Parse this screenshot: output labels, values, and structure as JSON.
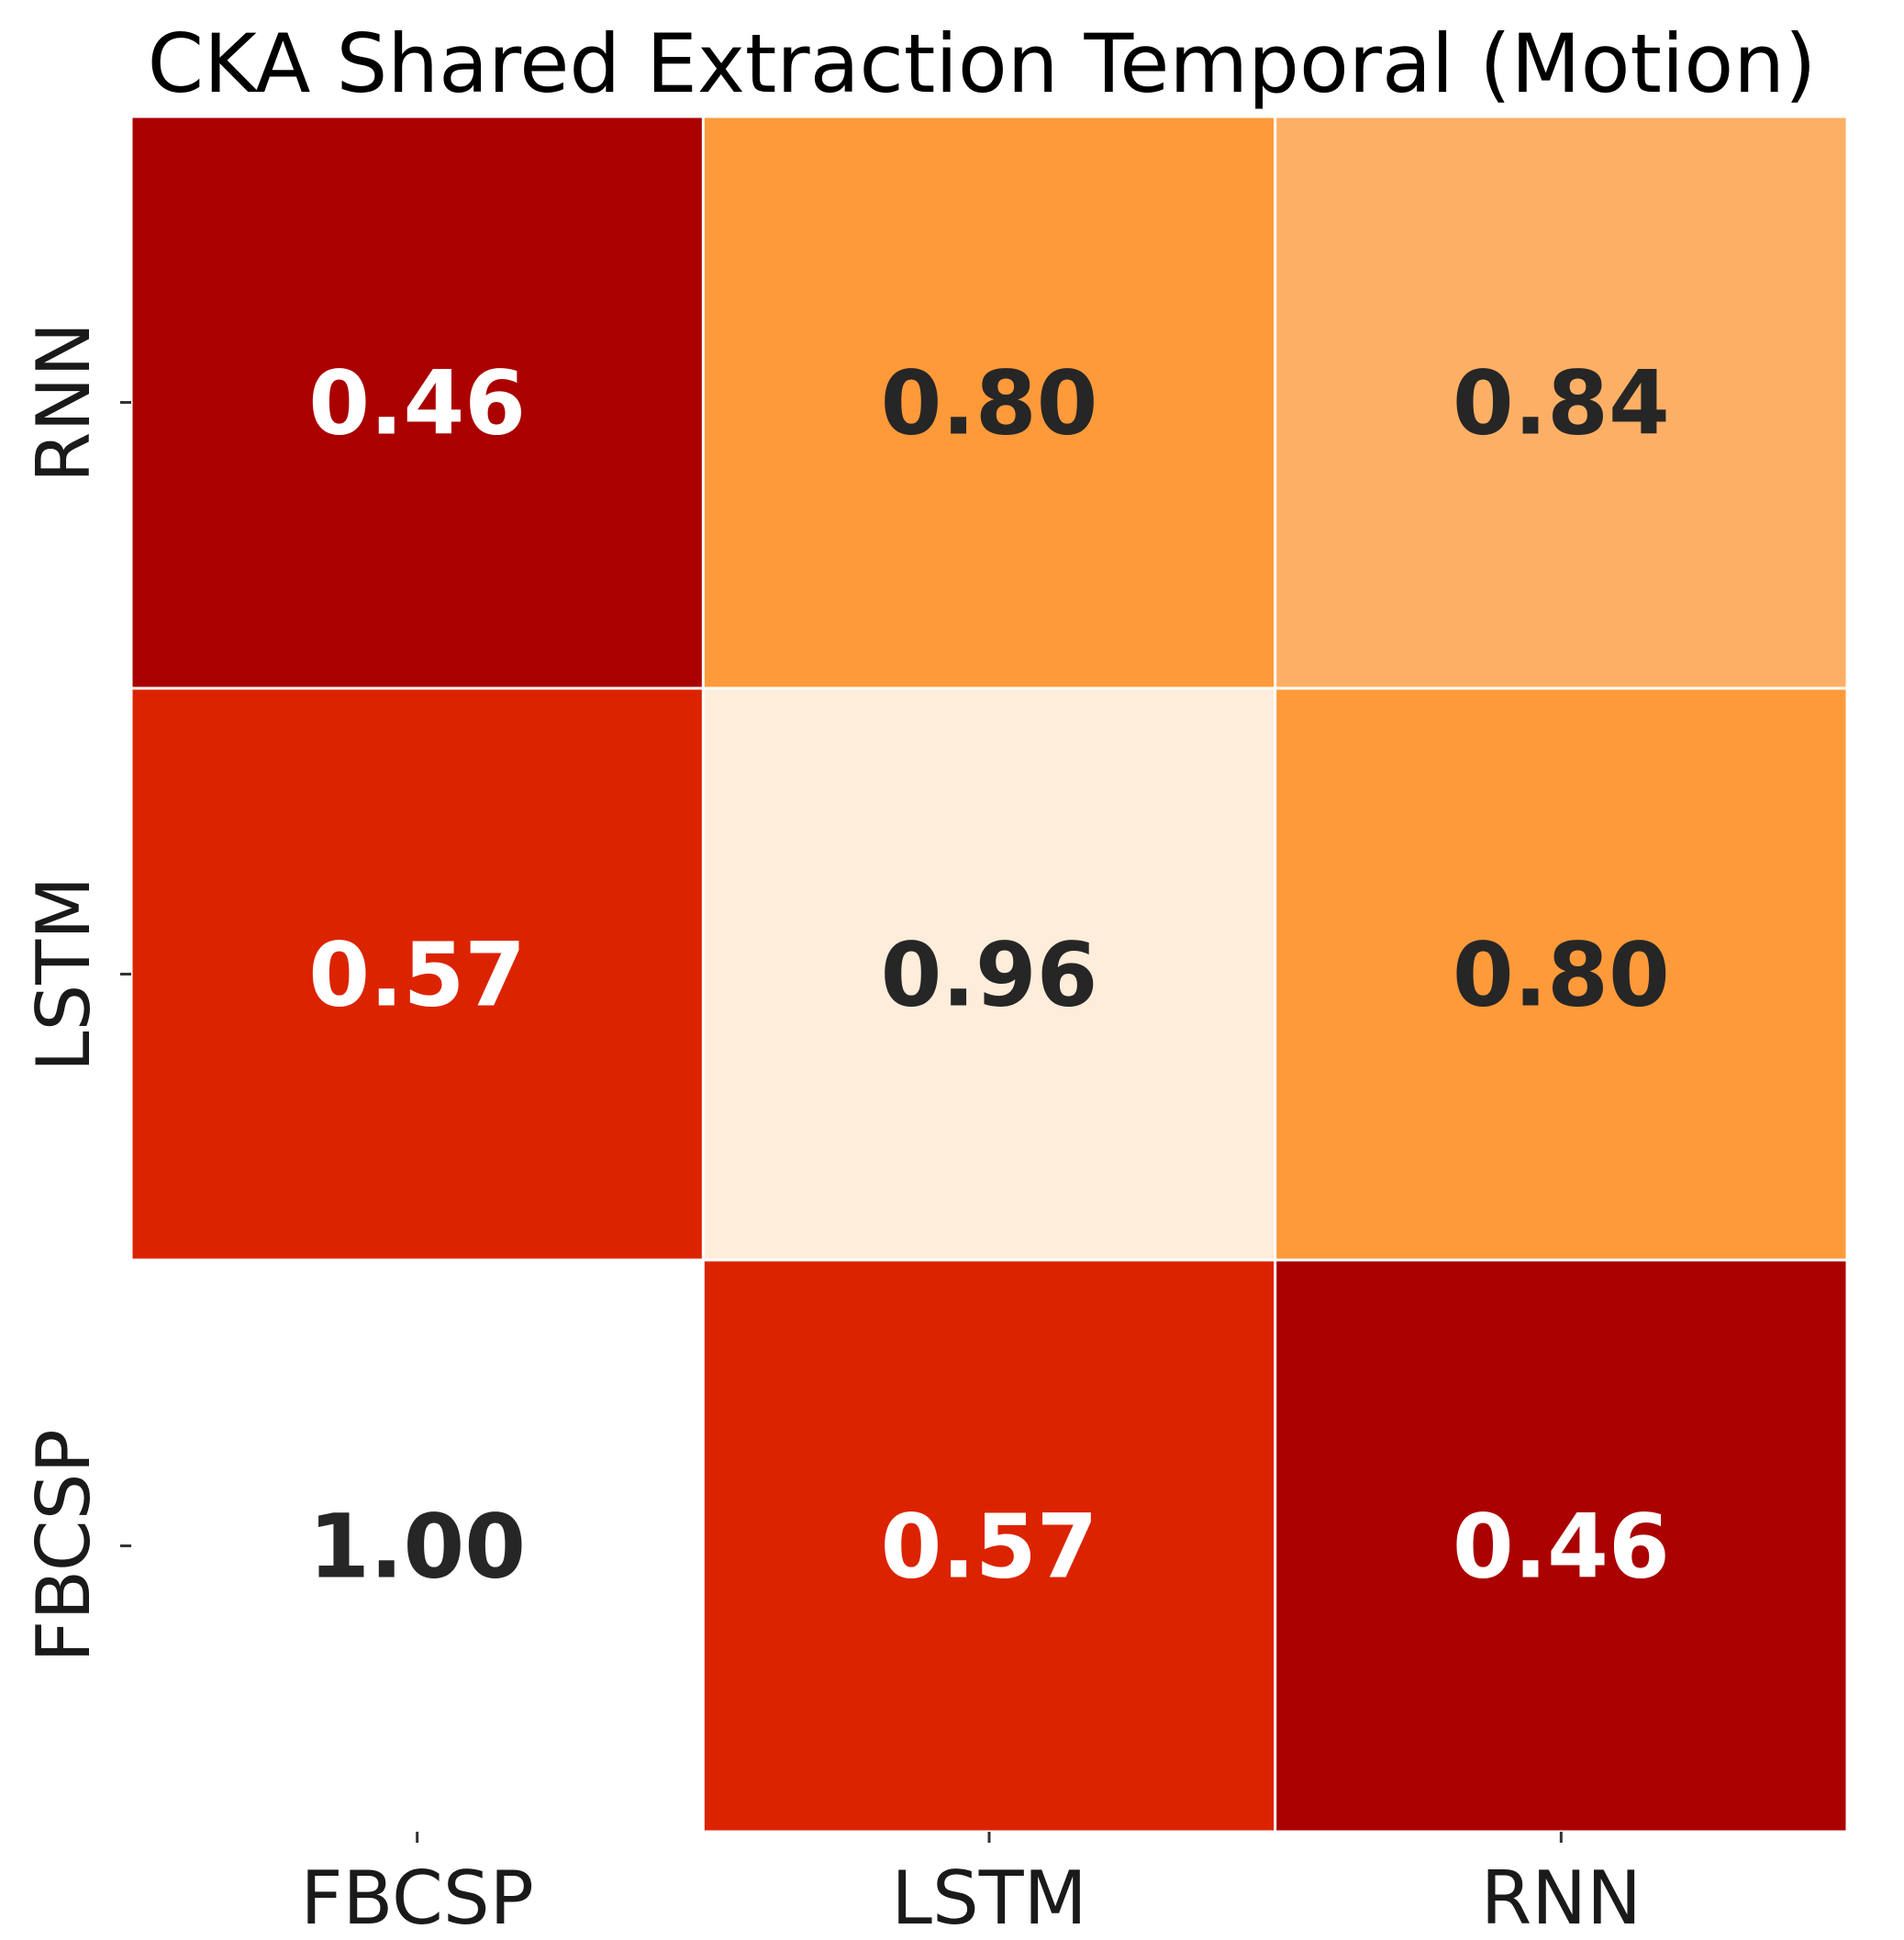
{
  "chart_data": {
    "type": "heatmap",
    "title": "CKA Shared Extraction Temporal (Motion)",
    "xlabel": "",
    "ylabel": "",
    "x_categories": [
      "FBCSP",
      "LSTM",
      "RNN"
    ],
    "y_categories": [
      "RNN",
      "LSTM",
      "FBCSP"
    ],
    "values": [
      [
        0.46,
        0.8,
        0.84
      ],
      [
        0.57,
        0.96,
        0.8
      ],
      [
        1.0,
        0.57,
        0.46
      ]
    ],
    "value_labels": [
      [
        "0.46",
        "0.80",
        "0.84"
      ],
      [
        "0.57",
        "0.96",
        "0.80"
      ],
      [
        "1.00",
        "0.57",
        "0.46"
      ]
    ],
    "colormap": "OrRd-like (low = dark red, high = cream / white)",
    "cell_colors": [
      [
        "#ab0000",
        "#fe9a3a",
        "#fdaf65"
      ],
      [
        "#dc2300",
        "#fdedda",
        "#fe9a3a"
      ],
      [
        "#ffffff",
        "#dc2300",
        "#ab0000"
      ]
    ],
    "label_colors": [
      [
        "#ffffff",
        "#262626",
        "#262626"
      ],
      [
        "#ffffff",
        "#262626",
        "#262626"
      ],
      [
        "#262626",
        "#ffffff",
        "#ffffff"
      ]
    ],
    "colorbar": false,
    "grid_line_color": "#ffffff"
  }
}
